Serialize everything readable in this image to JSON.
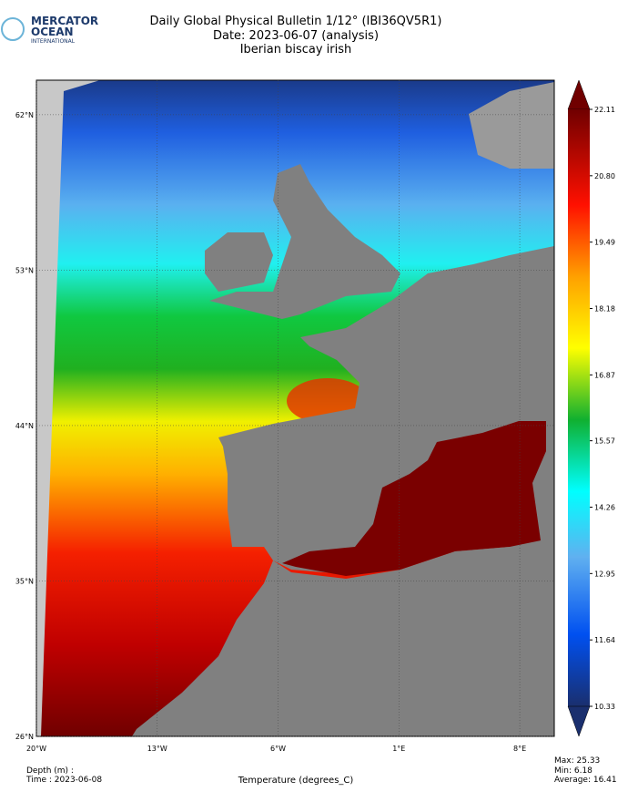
{
  "logo": {
    "line1": "MERCATOR",
    "line2": "OCEAN",
    "line3": "INTERNATIONAL"
  },
  "header": {
    "title": "Daily Global Physical Bulletin 1/12° (IBI36QV5R1)",
    "date": "Date: 2023-06-07 (analysis)",
    "region": "Iberian biscay irish"
  },
  "map": {
    "lon_range": [
      -20,
      10
    ],
    "lat_range": [
      26,
      64
    ],
    "lat_ticks": [
      {
        "value": 62,
        "label": "62°N"
      },
      {
        "value": 53,
        "label": "53°N"
      },
      {
        "value": 44,
        "label": "44°N"
      },
      {
        "value": 35,
        "label": "35°N"
      },
      {
        "value": 26,
        "label": "26°N"
      }
    ],
    "lon_ticks": [
      {
        "value": -20,
        "label": "20°W"
      },
      {
        "value": -13,
        "label": "13°W"
      },
      {
        "value": -6,
        "label": "6°W"
      },
      {
        "value": 1,
        "label": "1°E"
      },
      {
        "value": 8,
        "label": "8°E"
      }
    ]
  },
  "colorbar": {
    "ticks": [
      10.33,
      11.64,
      12.95,
      14.26,
      15.57,
      16.87,
      18.18,
      19.49,
      {
        "value": 20.8,
        "label": "20.80"
      },
      22.11
    ]
  },
  "footer": {
    "depth": "Depth (m) :",
    "time": "Time : 2023-06-08",
    "variable": "Temperature (degrees_C)",
    "max": "Max: 25.33",
    "min": "Min:  6.18",
    "average": "Average: 16.41"
  }
}
